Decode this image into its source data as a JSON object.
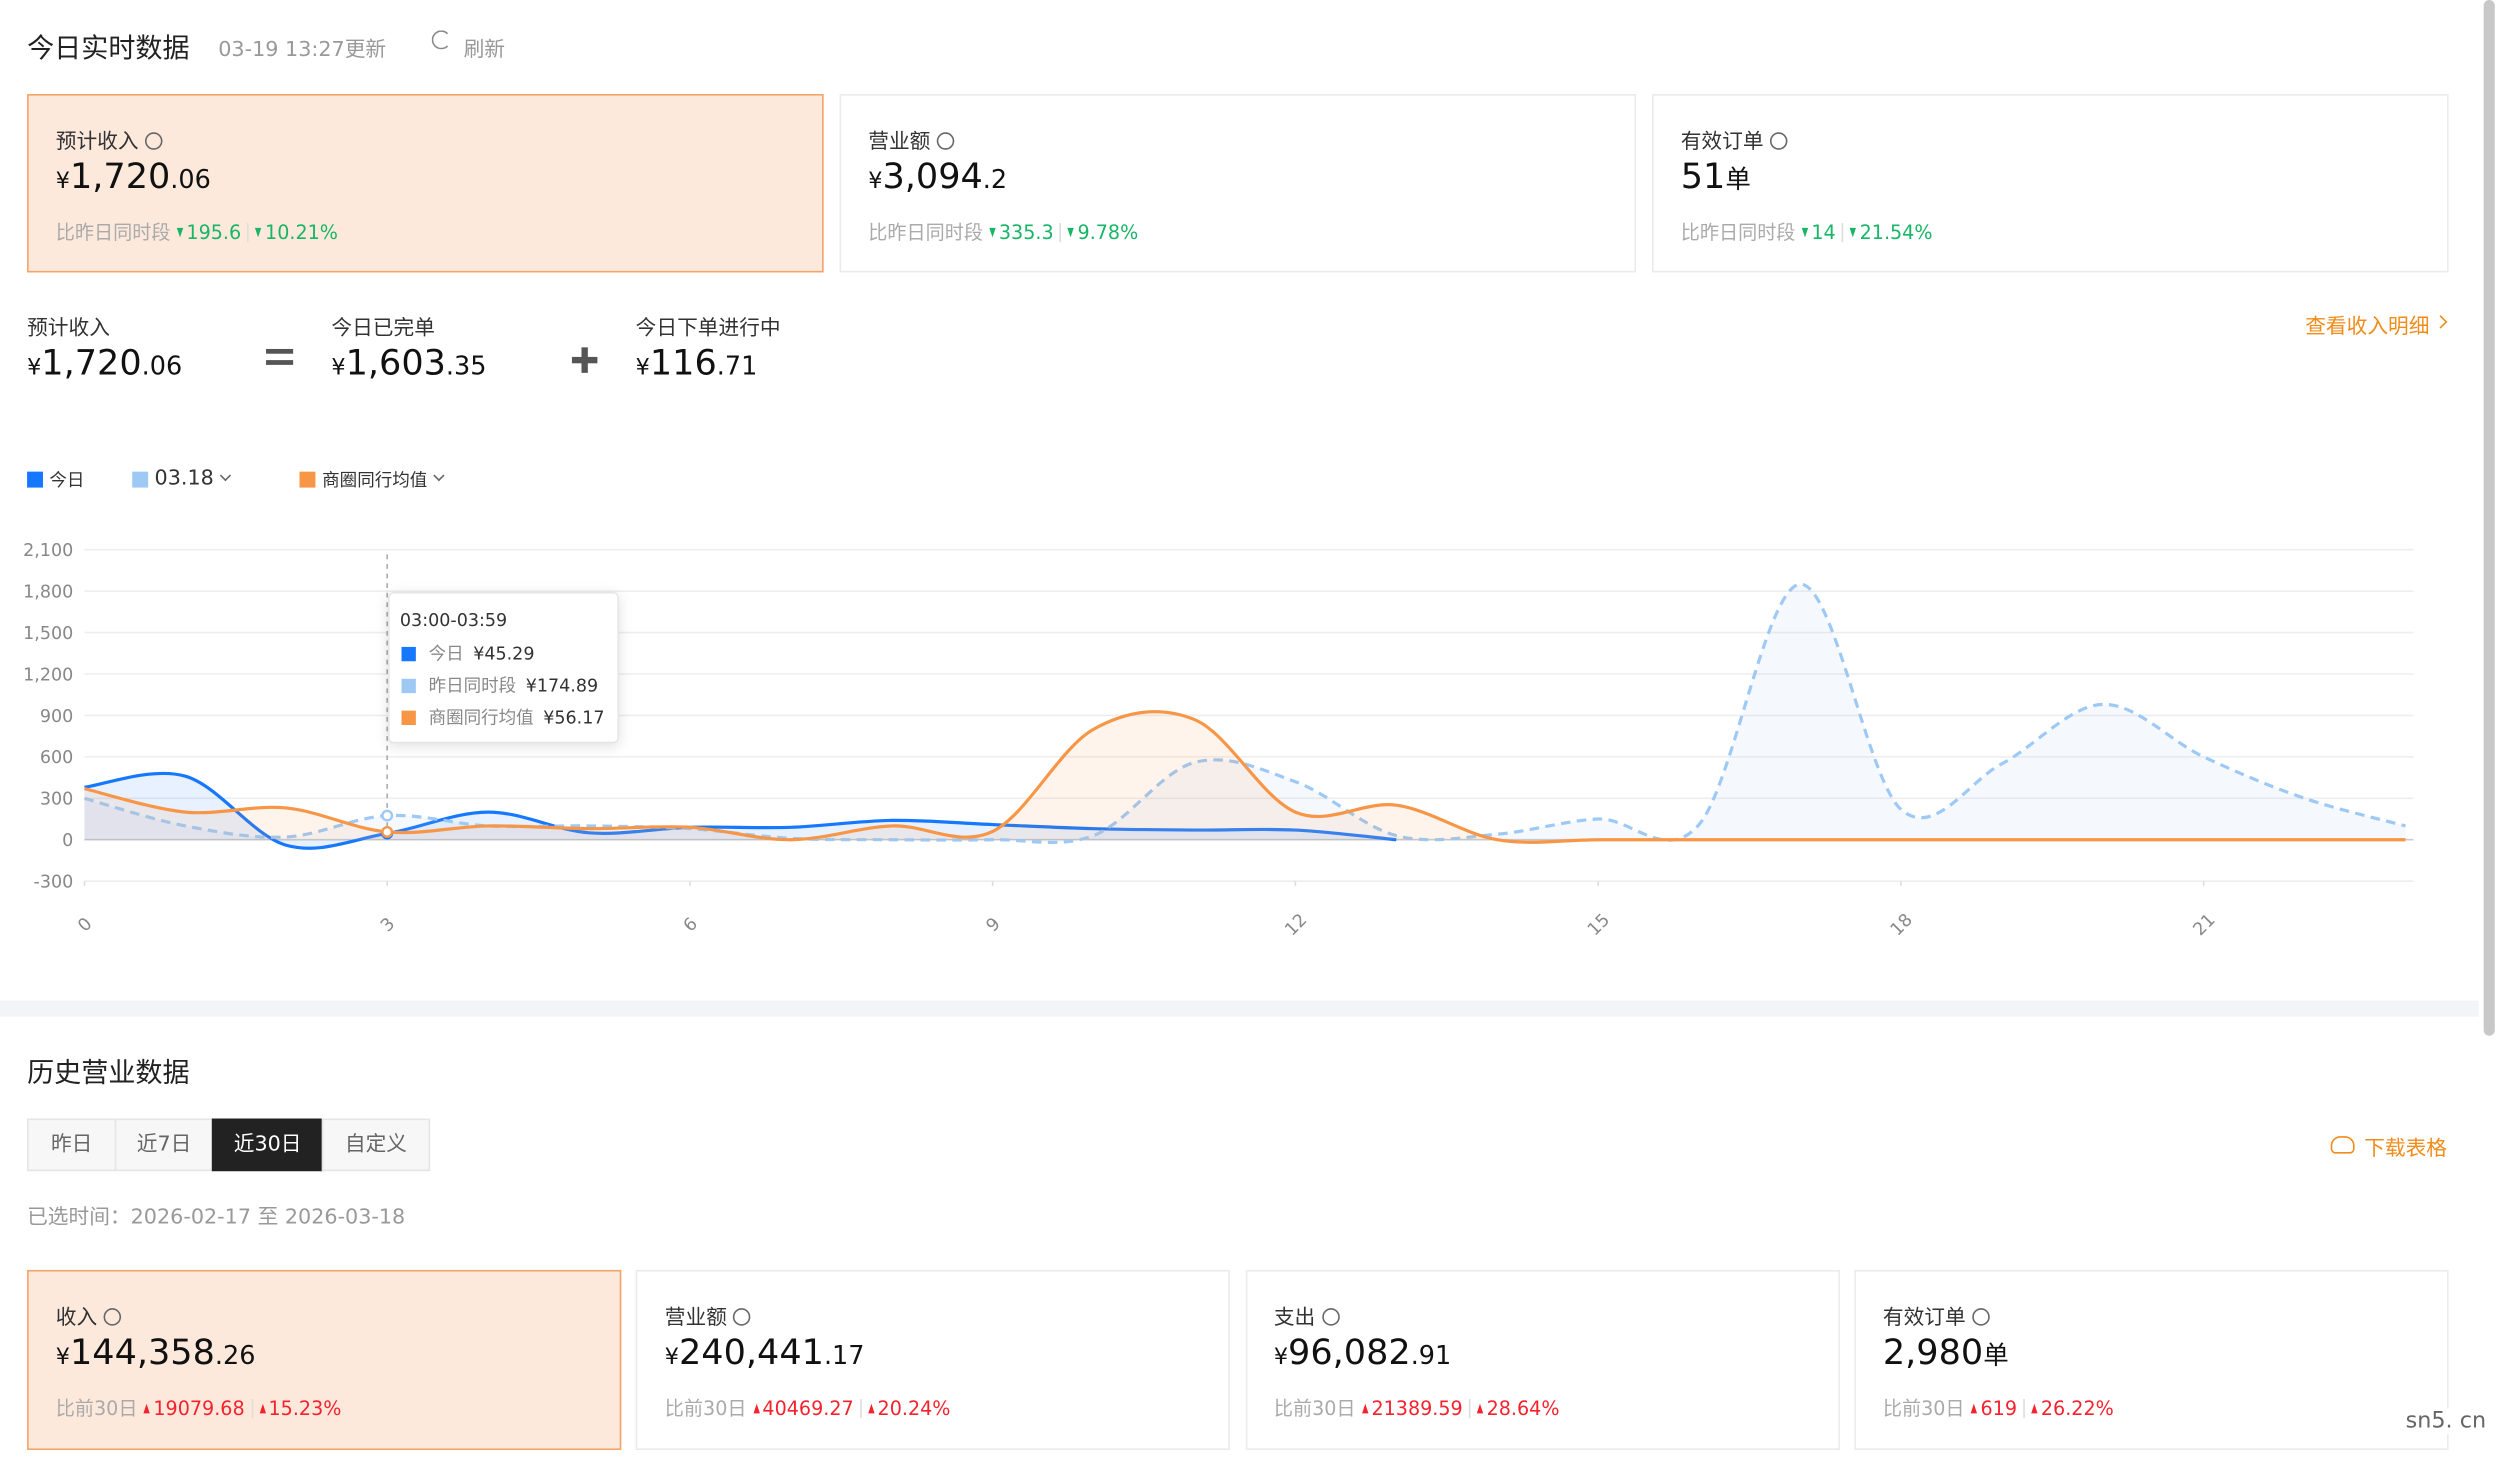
{
  "header": {
    "title": "今日实时数据",
    "updated": "03-19 13:27更新",
    "refresh": "刷新"
  },
  "today_cards": [
    {
      "label": "预计收入",
      "currency": "¥",
      "integer": "1,720",
      "decimal": ".06",
      "compare": "比昨日同时段",
      "delta": "195.6",
      "change": "10.21%",
      "direction": "down",
      "highlight": true
    },
    {
      "label": "营业额",
      "currency": "¥",
      "integer": "3,094",
      "decimal": ".2",
      "compare": "比昨日同时段",
      "delta": "335.3",
      "change": "9.78%",
      "direction": "down",
      "highlight": false
    },
    {
      "label": "有效订单",
      "integer": "51",
      "unit": "单",
      "compare": "比昨日同时段",
      "delta": "14",
      "change": "21.54%",
      "direction": "down",
      "highlight": false
    }
  ],
  "breakdown": {
    "items": [
      {
        "label": "预计收入",
        "currency": "¥",
        "integer": "1,720",
        "decimal": ".06"
      },
      {
        "label": "今日已完单",
        "currency": "¥",
        "integer": "1,603",
        "decimal": ".35"
      },
      {
        "label": "今日下单进行中",
        "currency": "¥",
        "integer": "116",
        "decimal": ".71"
      }
    ],
    "detail_link": "查看收入明细"
  },
  "chart_data": {
    "type": "line",
    "x": [
      0,
      1,
      2,
      3,
      4,
      5,
      6,
      7,
      8,
      9,
      10,
      11,
      12,
      13,
      14,
      15,
      16,
      17,
      18,
      19,
      20,
      21,
      22,
      23
    ],
    "series": [
      {
        "name": "今日",
        "color": "#1677ff",
        "dashed": false,
        "dropdown": false,
        "values": [
          380,
          460,
          -40,
          45.29,
          200,
          50,
          90,
          90,
          140,
          110,
          80,
          70,
          70,
          0,
          null,
          null,
          null,
          null,
          null,
          null,
          null,
          null,
          null,
          null
        ]
      },
      {
        "name": "03.18",
        "color": "#9ec9f5",
        "dashed": true,
        "dropdown": true,
        "values": [
          300,
          100,
          20,
          174.89,
          100,
          100,
          80,
          10,
          0,
          0,
          30,
          560,
          420,
          30,
          40,
          150,
          110,
          1850,
          220,
          550,
          980,
          600,
          300,
          100
        ]
      },
      {
        "name": "商圈同行均值",
        "color": "#f79646",
        "dashed": false,
        "dropdown": true,
        "values": [
          370,
          200,
          230,
          56.17,
          100,
          80,
          90,
          0,
          100,
          60,
          800,
          870,
          200,
          250,
          0,
          0,
          0,
          0,
          0,
          0,
          0,
          0,
          0,
          0
        ]
      }
    ],
    "xlim": [
      0,
      23.08
    ],
    "xticks": [
      0,
      3,
      6,
      9,
      12,
      15,
      18,
      21
    ],
    "ylim": [
      -300,
      2100
    ],
    "yticks": [
      {
        "value": -300,
        "label": "-300"
      },
      0,
      300,
      600,
      900,
      {
        "value": 1200,
        "label": "1,200"
      },
      {
        "value": 1500,
        "label": "1,500"
      },
      {
        "value": 1800,
        "label": "1,800"
      },
      {
        "value": 2100,
        "label": "2,100"
      }
    ],
    "grid": true,
    "tooltip": {
      "x": 3,
      "title": "03:00-03:59",
      "items": [
        {
          "name": "今日",
          "value": "¥45.29"
        },
        {
          "name": "昨日同时段",
          "value": "¥174.89"
        },
        {
          "name": "商圈同行均值",
          "value": "¥56.17"
        }
      ]
    }
  },
  "history": {
    "title": "历史营业数据",
    "tabs": [
      "昨日",
      "近7日",
      "近30日",
      "自定义"
    ],
    "active_tab": 2,
    "download": "下载表格",
    "selected_range": "已选时间：2026-02-17 至 2026-03-18",
    "cards": [
      {
        "label": "收入",
        "currency": "¥",
        "integer": "144,358",
        "decimal": ".26",
        "compare": "比前30日",
        "delta": "19079.68",
        "change": "15.23%",
        "direction": "up",
        "highlight": true
      },
      {
        "label": "营业额",
        "currency": "¥",
        "integer": "240,441",
        "decimal": ".17",
        "compare": "比前30日",
        "delta": "40469.27",
        "change": "20.24%",
        "direction": "up",
        "highlight": false
      },
      {
        "label": "支出",
        "currency": "¥",
        "integer": "96,082",
        "decimal": ".91",
        "compare": "比前30日",
        "delta": "21389.59",
        "change": "28.64%",
        "direction": "up",
        "highlight": false
      },
      {
        "label": "有效订单",
        "integer": "2,980",
        "unit": "单",
        "compare": "比前30日",
        "delta": "619",
        "change": "26.22%",
        "direction": "up",
        "highlight": false
      }
    ]
  },
  "watermark": "sn5. cn"
}
